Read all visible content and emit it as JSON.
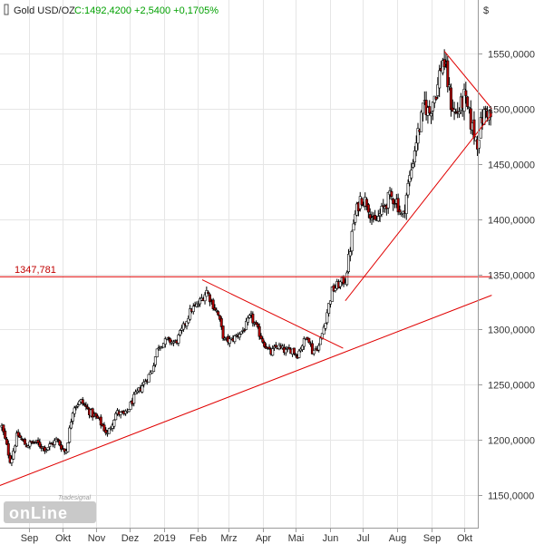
{
  "header": {
    "instrument": "Gold USD/OZ",
    "quote": "C:1492,4200 +2,5400 +0,1705%",
    "quote_color": "#00a000"
  },
  "watermark": {
    "brand": "Tradesignal",
    "product": "onLine"
  },
  "colors": {
    "up_body": "#ffffff",
    "down_body": "#b80000",
    "wick": "#000000",
    "trendline": "#e00000",
    "grid": "#e6e6e6"
  },
  "chart_data": {
    "type": "candlestick",
    "title": "Gold USD/OZ",
    "ylabel": "$",
    "ylim": [
      1115,
      1585
    ],
    "y_ticks": [
      {
        "value": 1550,
        "label": "1550,0000"
      },
      {
        "value": 1500,
        "label": "1500,0000"
      },
      {
        "value": 1450,
        "label": "1450,0000"
      },
      {
        "value": 1400,
        "label": "1400,0000"
      },
      {
        "value": 1350,
        "label": "1350,0000"
      },
      {
        "value": 1300,
        "label": "1300,0000"
      },
      {
        "value": 1250,
        "label": "1250,0000"
      },
      {
        "value": 1200,
        "label": "1200,0000"
      },
      {
        "value": 1150,
        "label": "1150,0000"
      }
    ],
    "x_labels": [
      "Sep",
      "Okt",
      "Nov",
      "Dez",
      "2019",
      "Feb",
      "Mrz",
      "Apr",
      "Mai",
      "Jun",
      "Jul",
      "Aug",
      "Sep",
      "Okt"
    ],
    "x_range_days": [
      0,
      420
    ],
    "x_label_days": [
      25,
      55,
      86,
      116,
      147,
      178,
      206,
      237,
      267,
      298,
      328,
      359,
      390,
      420
    ],
    "level": {
      "value": 1347.781,
      "label": "1347,781"
    },
    "price_path": [
      [
        0,
        1212
      ],
      [
        8,
        1180
      ],
      [
        14,
        1205
      ],
      [
        22,
        1195
      ],
      [
        30,
        1198
      ],
      [
        40,
        1192
      ],
      [
        50,
        1200
      ],
      [
        58,
        1188
      ],
      [
        65,
        1230
      ],
      [
        72,
        1235
      ],
      [
        80,
        1225
      ],
      [
        88,
        1218
      ],
      [
        96,
        1205
      ],
      [
        104,
        1225
      ],
      [
        112,
        1222
      ],
      [
        120,
        1238
      ],
      [
        128,
        1250
      ],
      [
        136,
        1262
      ],
      [
        142,
        1285
      ],
      [
        150,
        1290
      ],
      [
        158,
        1288
      ],
      [
        164,
        1300
      ],
      [
        172,
        1318
      ],
      [
        178,
        1322
      ],
      [
        186,
        1335
      ],
      [
        192,
        1322
      ],
      [
        196,
        1315
      ],
      [
        202,
        1290
      ],
      [
        208,
        1290
      ],
      [
        214,
        1295
      ],
      [
        220,
        1300
      ],
      [
        226,
        1312
      ],
      [
        232,
        1300
      ],
      [
        238,
        1288
      ],
      [
        244,
        1278
      ],
      [
        250,
        1285
      ],
      [
        258,
        1280
      ],
      [
        264,
        1282
      ],
      [
        268,
        1276
      ],
      [
        272,
        1285
      ],
      [
        278,
        1295
      ],
      [
        282,
        1280
      ],
      [
        288,
        1285
      ],
      [
        292,
        1300
      ],
      [
        296,
        1318
      ],
      [
        300,
        1335
      ],
      [
        305,
        1340
      ],
      [
        312,
        1345
      ],
      [
        316,
        1370
      ],
      [
        320,
        1400
      ],
      [
        326,
        1420
      ],
      [
        332,
        1415
      ],
      [
        338,
        1395
      ],
      [
        344,
        1405
      ],
      [
        352,
        1420
      ],
      [
        358,
        1418
      ],
      [
        364,
        1400
      ],
      [
        368,
        1425
      ],
      [
        372,
        1445
      ],
      [
        376,
        1470
      ],
      [
        380,
        1485
      ],
      [
        384,
        1505
      ],
      [
        388,
        1495
      ],
      [
        392,
        1510
      ],
      [
        396,
        1520
      ],
      [
        398,
        1535
      ],
      [
        401,
        1546
      ],
      [
        404,
        1530
      ],
      [
        408,
        1505
      ],
      [
        412,
        1495
      ],
      [
        416,
        1500
      ],
      [
        420,
        1510
      ],
      [
        424,
        1495
      ],
      [
        428,
        1480
      ],
      [
        432,
        1470
      ],
      [
        436,
        1490
      ],
      [
        440,
        1500
      ],
      [
        444,
        1492
      ]
    ],
    "trendlines": [
      {
        "name": "long-term-support",
        "points": [
          [
            -6,
            1157
          ],
          [
            445,
            1331
          ]
        ]
      },
      {
        "name": "resistance-level",
        "points": [
          [
            -6,
            1347.781
          ],
          [
            445,
            1347.781
          ]
        ]
      },
      {
        "name": "feb-may-descending",
        "points": [
          [
            182,
            1345
          ],
          [
            310,
            1283
          ]
        ]
      },
      {
        "name": "sep-okt-descending",
        "points": [
          [
            402,
            1552
          ],
          [
            445,
            1500
          ]
        ]
      },
      {
        "name": "jun-okt-support",
        "points": [
          [
            312,
            1326
          ],
          [
            445,
            1495
          ]
        ]
      }
    ],
    "grid": true,
    "y_axis_position": "right"
  }
}
